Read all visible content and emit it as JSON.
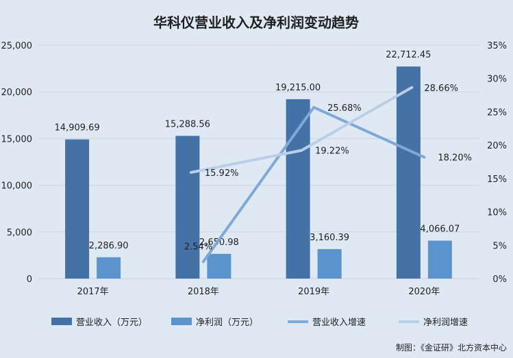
{
  "chart_data": {
    "type": "bar",
    "title": "华科仪营业收入及净利润变动趋势",
    "categories": [
      "2017年",
      "2018年",
      "2019年",
      "2020年"
    ],
    "y_left": {
      "ylim": [
        0,
        25000
      ],
      "ticks": [
        "0",
        "5,000",
        "10,000",
        "15,000",
        "20,000",
        "25,000"
      ]
    },
    "y_right": {
      "ylim": [
        0,
        35
      ],
      "ticks": [
        "0%",
        "5%",
        "10%",
        "15%",
        "20%",
        "25%",
        "30%",
        "35%"
      ]
    },
    "grid": true,
    "legend_position": "bottom",
    "series": [
      {
        "name": "营业收入（万元）",
        "type": "bar",
        "axis": "left",
        "color": "#4472a6",
        "values": [
          14909.69,
          15288.56,
          19215.0,
          22712.45
        ],
        "labels": [
          "14,909.69",
          "15,288.56",
          "19,215.00",
          "22,712.45"
        ]
      },
      {
        "name": "净利润（万元）",
        "type": "bar",
        "axis": "left",
        "color": "#5b93cc",
        "values": [
          2286.9,
          2650.98,
          3160.39,
          4066.07
        ],
        "labels": [
          "2,286.90",
          "2,650.98",
          "3,160.39",
          "4,066.07"
        ]
      },
      {
        "name": "营业收入增速",
        "type": "line",
        "axis": "right",
        "color": "#7ea8d8",
        "values": [
          null,
          2.54,
          25.68,
          18.2
        ],
        "labels": [
          null,
          "2.54%",
          "25.68%",
          "18.20%"
        ]
      },
      {
        "name": "净利润增速",
        "type": "line",
        "axis": "right",
        "color": "#b9cfe8",
        "values": [
          null,
          15.92,
          19.22,
          28.66
        ],
        "labels": [
          null,
          "15.92%",
          "19.22%",
          "28.66%"
        ]
      }
    ]
  },
  "footer": {
    "credit": "制图：《金证研》北方资本中心"
  }
}
